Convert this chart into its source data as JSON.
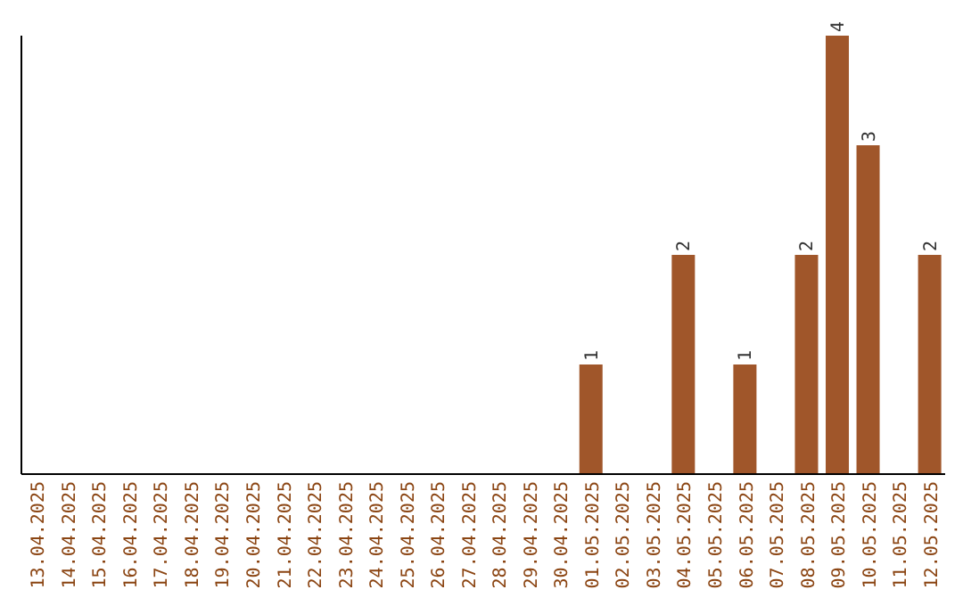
{
  "chart_data": {
    "type": "bar",
    "categories": [
      "13.04.2025",
      "14.04.2025",
      "15.04.2025",
      "16.04.2025",
      "17.04.2025",
      "18.04.2025",
      "19.04.2025",
      "20.04.2025",
      "21.04.2025",
      "22.04.2025",
      "23.04.2025",
      "24.04.2025",
      "25.04.2025",
      "26.04.2025",
      "27.04.2025",
      "28.04.2025",
      "29.04.2025",
      "30.04.2025",
      "01.05.2025",
      "02.05.2025",
      "03.05.2025",
      "04.05.2025",
      "05.05.2025",
      "06.05.2025",
      "07.05.2025",
      "08.05.2025",
      "09.05.2025",
      "10.05.2025",
      "11.05.2025",
      "12.05.2025"
    ],
    "values": [
      null,
      null,
      null,
      null,
      null,
      null,
      null,
      null,
      null,
      null,
      null,
      null,
      null,
      null,
      null,
      null,
      null,
      null,
      1,
      null,
      null,
      2,
      null,
      1,
      null,
      2,
      4,
      3,
      null,
      2
    ],
    "data_labels": true,
    "color": "#a0562a",
    "ylim": [
      0,
      4
    ],
    "tick_labels": "x",
    "grid": false,
    "legend": false
  }
}
